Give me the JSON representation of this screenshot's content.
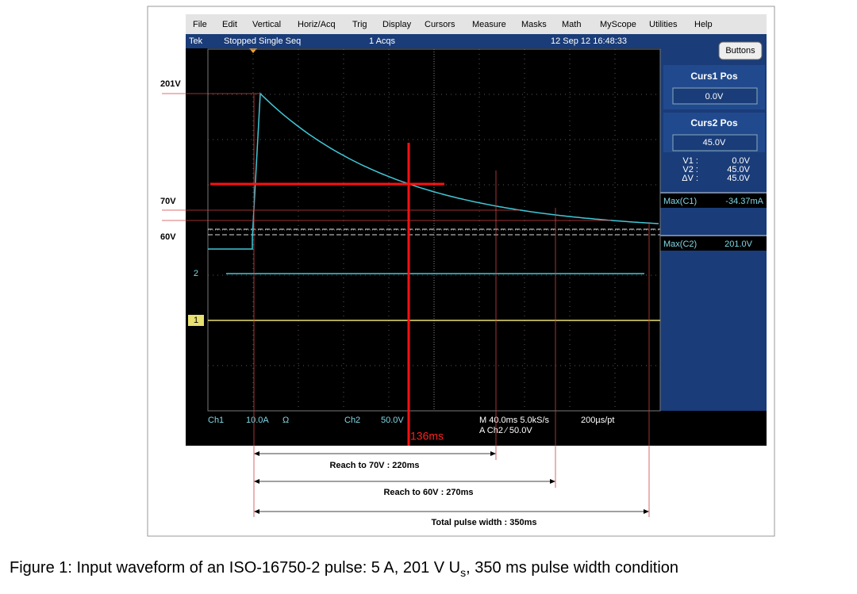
{
  "menu": {
    "items": [
      "File",
      "Edit",
      "Vertical",
      "Horiz/Acq",
      "Trig",
      "Display",
      "Cursors",
      "Measure",
      "Masks",
      "Math",
      "MyScope",
      "Utilities",
      "Help"
    ]
  },
  "status": {
    "brand": "Tek",
    "state": "Stopped Single Seq",
    "acqs": "1 Acqs",
    "datetime": "12 Sep 12 16:48:33",
    "button": "Buttons"
  },
  "panel": {
    "curs1_label": "Curs1 Pos",
    "curs1_value": "0.0V",
    "curs2_label": "Curs2 Pos",
    "curs2_value": "45.0V",
    "readouts": [
      [
        "V1 :",
        "0.0V"
      ],
      [
        "V2 :",
        "45.0V"
      ],
      [
        "ΔV :",
        "45.0V"
      ]
    ],
    "measurements": [
      [
        "Max(C1)",
        "-34.37mA"
      ],
      [
        "Max(C2)",
        "201.0V"
      ]
    ]
  },
  "channels": {
    "ch2_marker": "2",
    "ch1_marker": "1"
  },
  "bottom": {
    "ch1": "Ch1",
    "ch1_scale": "10.0A",
    "ch1_unit": "Ω",
    "ch2": "Ch2",
    "ch2_scale": "50.0V",
    "timebase": "M 40.0ms 5.0kS/s",
    "points": "200µs/pt",
    "trigger": "A  Ch2  ⁄  50.0V"
  },
  "annotations": {
    "level_201": "201V",
    "level_70": "70V",
    "level_60": "60V",
    "cursor_time": "136ms",
    "reach_70": "Reach to 70V : 220ms",
    "reach_60": "Reach to 60V : 270ms",
    "total": "Total pulse width : 350ms"
  },
  "caption": {
    "main": "Figure 1: Input waveform of an ISO-16750-2 pulse: 5 A, 201 V U",
    "sub": "s",
    "rest": ", 350 ms pulse width condition"
  }
}
